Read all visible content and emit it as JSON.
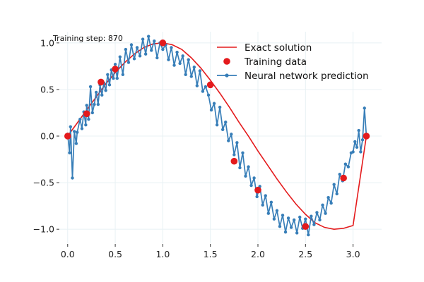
{
  "chart_data": {
    "type": "line",
    "title": "",
    "xlabel": "",
    "ylabel": "",
    "annotation": "Training step: 870",
    "xlim": [
      -0.08,
      3.3
    ],
    "ylim": [
      -1.15,
      1.12
    ],
    "xticks": [
      0.0,
      0.5,
      1.0,
      1.5,
      2.0,
      2.5,
      3.0
    ],
    "xtick_labels": [
      "0.0",
      "0.5",
      "1.0",
      "1.5",
      "2.0",
      "2.5",
      "3.0"
    ],
    "yticks": [
      -1.0,
      -0.5,
      0.0,
      0.5,
      1.0
    ],
    "ytick_labels": [
      "−1.0",
      "−0.5",
      "0.0",
      "0.5",
      "1.0"
    ],
    "grid": true,
    "legend_position": "top-right",
    "legend": [
      {
        "label": "Exact solution",
        "marker": "line",
        "color": "#e41a1c"
      },
      {
        "label": "Training data",
        "marker": "dot",
        "color": "#e41a1c"
      },
      {
        "label": "Neural network prediction",
        "marker": "line-dot",
        "color": "#377eb8"
      }
    ],
    "series": [
      {
        "name": "Exact solution",
        "kind": "line",
        "color": "#e41a1c",
        "x": [
          0.0,
          0.1,
          0.2,
          0.3,
          0.4,
          0.5,
          0.6,
          0.7,
          0.8,
          0.9,
          1.0,
          1.1,
          1.2,
          1.3,
          1.4,
          1.5,
          1.6,
          1.7,
          1.8,
          1.9,
          2.0,
          2.1,
          2.2,
          2.3,
          2.4,
          2.5,
          2.6,
          2.7,
          2.8,
          2.9,
          3.0,
          3.14
        ],
        "y": [
          0.0,
          0.14,
          0.28,
          0.42,
          0.56,
          0.68,
          0.79,
          0.88,
          0.95,
          0.99,
          1.0,
          0.98,
          0.93,
          0.84,
          0.73,
          0.6,
          0.46,
          0.31,
          0.15,
          0.0,
          -0.16,
          -0.31,
          -0.46,
          -0.6,
          -0.73,
          -0.84,
          -0.93,
          -0.98,
          -1.0,
          -0.99,
          -0.96,
          0.0
        ]
      },
      {
        "name": "Training data",
        "kind": "scatter",
        "color": "#e41a1c",
        "x": [
          0.0,
          0.2,
          0.35,
          0.5,
          1.0,
          1.5,
          1.75,
          2.0,
          2.5,
          2.9,
          3.14
        ],
        "y": [
          0.0,
          0.24,
          0.58,
          0.72,
          1.0,
          0.55,
          -0.27,
          -0.58,
          -0.97,
          -0.45,
          0.0
        ]
      },
      {
        "name": "Neural network prediction",
        "kind": "line",
        "color": "#377eb8",
        "x": [
          0.0,
          0.02,
          0.03,
          0.05,
          0.07,
          0.09,
          0.1,
          0.13,
          0.15,
          0.17,
          0.19,
          0.2,
          0.22,
          0.24,
          0.26,
          0.28,
          0.3,
          0.32,
          0.34,
          0.36,
          0.38,
          0.4,
          0.42,
          0.44,
          0.46,
          0.48,
          0.5,
          0.52,
          0.55,
          0.58,
          0.61,
          0.64,
          0.67,
          0.7,
          0.73,
          0.76,
          0.79,
          0.82,
          0.85,
          0.88,
          0.91,
          0.94,
          0.97,
          1.0,
          1.03,
          1.06,
          1.09,
          1.12,
          1.15,
          1.18,
          1.21,
          1.24,
          1.27,
          1.3,
          1.33,
          1.36,
          1.39,
          1.42,
          1.45,
          1.48,
          1.51,
          1.54,
          1.57,
          1.6,
          1.63,
          1.66,
          1.69,
          1.72,
          1.75,
          1.78,
          1.81,
          1.84,
          1.87,
          1.9,
          1.93,
          1.96,
          1.99,
          2.02,
          2.05,
          2.08,
          2.11,
          2.14,
          2.17,
          2.2,
          2.23,
          2.26,
          2.29,
          2.32,
          2.35,
          2.38,
          2.41,
          2.44,
          2.47,
          2.5,
          2.53,
          2.56,
          2.59,
          2.62,
          2.65,
          2.68,
          2.71,
          2.74,
          2.77,
          2.8,
          2.83,
          2.86,
          2.89,
          2.92,
          2.95,
          2.98,
          3.0,
          3.02,
          3.04,
          3.06,
          3.08,
          3.1,
          3.12,
          3.14
        ],
        "y": [
          0.02,
          -0.18,
          0.1,
          -0.45,
          0.05,
          -0.08,
          0.04,
          0.18,
          0.08,
          0.26,
          0.12,
          0.33,
          0.18,
          0.53,
          0.25,
          0.34,
          0.47,
          0.34,
          0.55,
          0.44,
          0.57,
          0.49,
          0.66,
          0.55,
          0.71,
          0.62,
          0.77,
          0.62,
          0.85,
          0.66,
          0.93,
          0.79,
          0.98,
          0.83,
          0.95,
          0.86,
          1.04,
          0.88,
          1.07,
          0.92,
          1.02,
          0.84,
          1.0,
          0.93,
          0.98,
          0.82,
          0.95,
          0.76,
          0.9,
          0.78,
          0.86,
          0.66,
          0.82,
          0.64,
          0.74,
          0.54,
          0.7,
          0.48,
          0.53,
          0.44,
          0.28,
          0.35,
          0.12,
          0.31,
          0.07,
          0.15,
          -0.05,
          0.02,
          -0.2,
          -0.07,
          -0.34,
          -0.18,
          -0.43,
          -0.33,
          -0.53,
          -0.45,
          -0.65,
          -0.54,
          -0.74,
          -0.64,
          -0.83,
          -0.71,
          -0.89,
          -0.8,
          -0.97,
          -0.85,
          -1.03,
          -0.88,
          -0.98,
          -0.9,
          -1.04,
          -0.87,
          -0.99,
          -0.89,
          -1.06,
          -0.86,
          -0.95,
          -0.82,
          -0.9,
          -0.74,
          -0.83,
          -0.66,
          -0.72,
          -0.52,
          -0.62,
          -0.41,
          -0.48,
          -0.3,
          -0.33,
          -0.18,
          -0.17,
          -0.06,
          -0.12,
          0.06,
          -0.17,
          -0.04,
          0.3,
          0.0
        ]
      }
    ]
  }
}
